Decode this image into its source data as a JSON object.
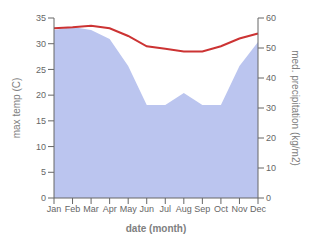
{
  "chart_data": {
    "type": "line",
    "categories": [
      "Jan",
      "Feb",
      "Mar",
      "Apr",
      "May",
      "Jun",
      "Jul",
      "Aug",
      "Sep",
      "Oct",
      "Nov",
      "Dec"
    ],
    "series": [
      {
        "type": "area",
        "axis": "y2",
        "color": "#bbc5ef",
        "values": [
          56,
          57,
          56,
          53,
          44,
          31,
          31,
          35,
          31,
          31,
          44,
          52
        ]
      },
      {
        "type": "line",
        "axis": "y",
        "color": "#cc3333",
        "values": [
          33.0,
          33.2,
          33.5,
          33.0,
          31.5,
          29.5,
          29.0,
          28.5,
          28.5,
          29.5,
          31.0,
          32.0
        ]
      }
    ],
    "xlabel": "date (month)",
    "ylabel": "max temp (C)",
    "y2label": "med. precipitation (kg/m2)",
    "ylim": [
      0,
      35
    ],
    "yticks": [
      0,
      5,
      10,
      15,
      20,
      25,
      30,
      35
    ],
    "y2lim": [
      0,
      60
    ],
    "y2ticks": [
      0,
      10,
      20,
      30,
      40,
      50,
      60
    ],
    "grid": false
  }
}
